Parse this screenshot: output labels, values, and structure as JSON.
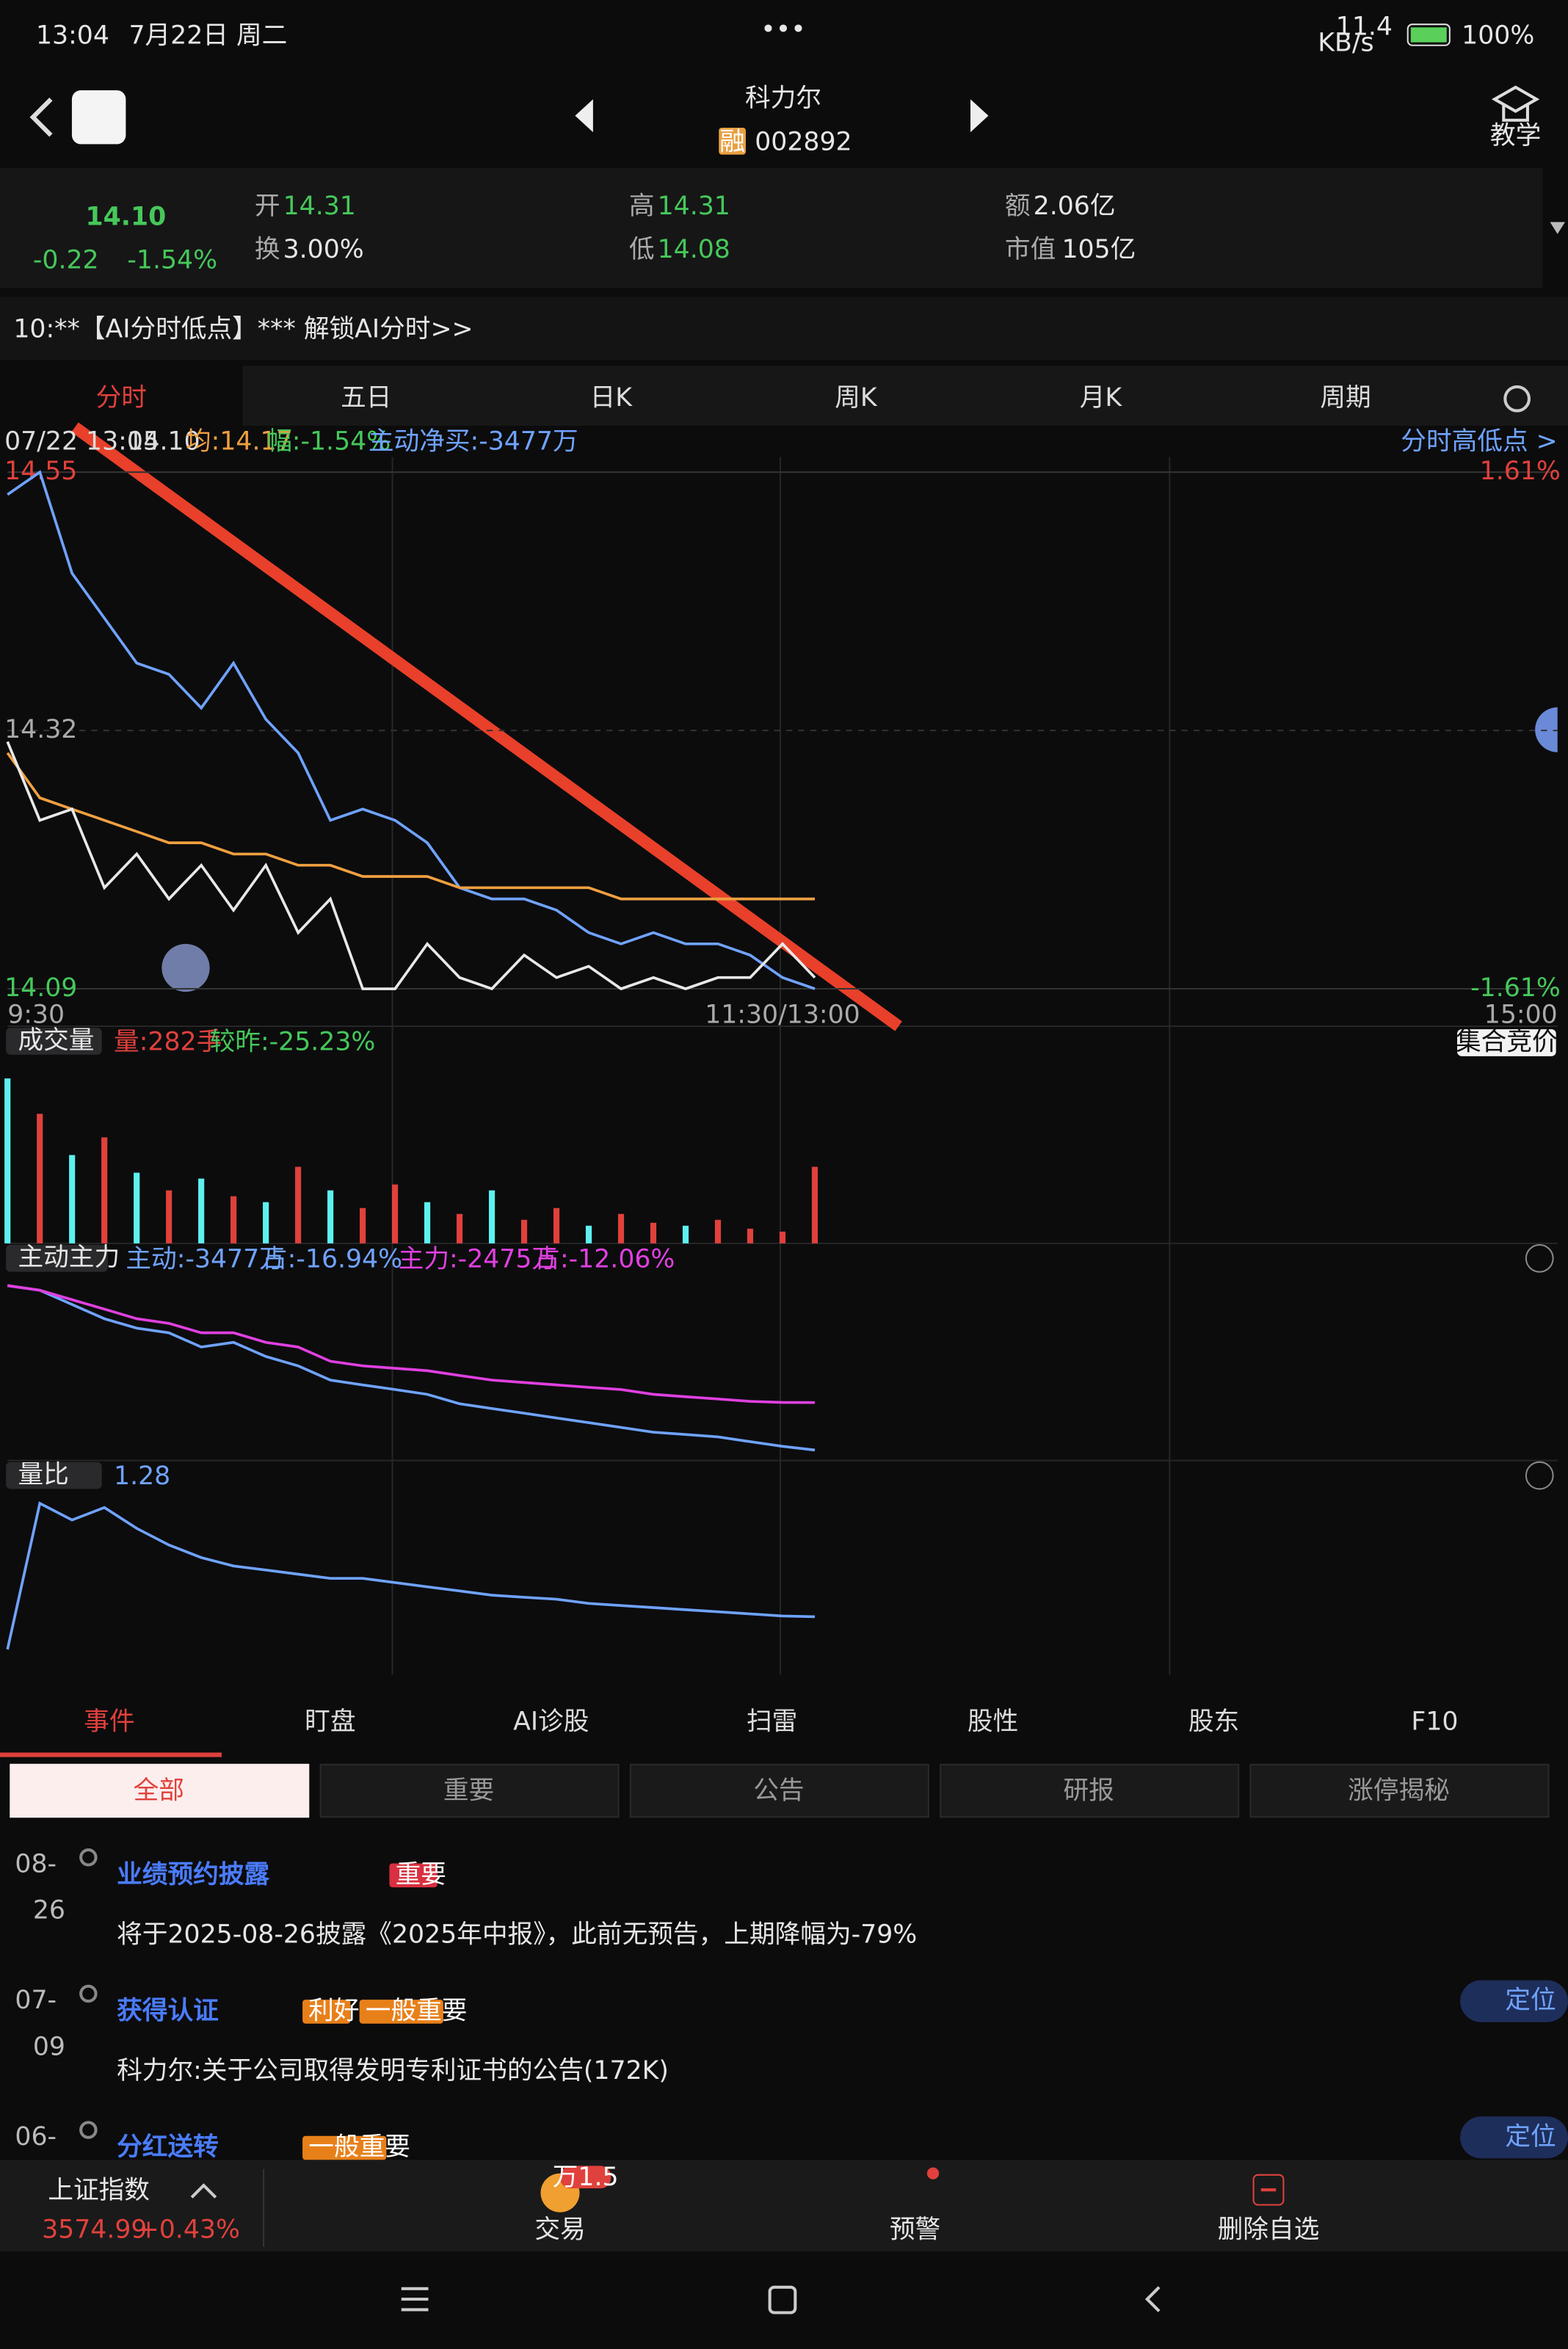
{
  "status": {
    "time": "13:04",
    "date": "7月22日 周二",
    "speed": "11.4",
    "speed_unit": "KB/s",
    "battery": "100%"
  },
  "header": {
    "name": "科力尔",
    "badge": "融",
    "code": "002892",
    "teach": "教学"
  },
  "quote": {
    "price": "14.10",
    "change": "-0.22",
    "pct": "-1.54%",
    "fields": [
      {
        "k": "开",
        "v": "14.31"
      },
      {
        "k": "换",
        "v": "3.00%"
      },
      {
        "k": "高",
        "v": "14.31"
      },
      {
        "k": "低",
        "v": "14.08"
      },
      {
        "k": "额",
        "v": "2.06亿"
      },
      {
        "k": "市值",
        "v": "105亿"
      }
    ]
  },
  "banner": "10:**【AI分时低点】*** 解锁AI分时>>",
  "tabs": [
    "分时",
    "五日",
    "日K",
    "周K",
    "月K",
    "周期"
  ],
  "info": {
    "time": "07/22 13:05",
    "price": "14.10",
    "avg": "均:14.17",
    "amp": "幅:-1.54%",
    "net": "主动净买:-3477万",
    "link": "分时高低点 >"
  },
  "charts": {
    "price": {
      "type": "line",
      "xlim": [
        0,
        240
      ],
      "xticks": [
        {
          "value": 0,
          "label": "9:30"
        },
        {
          "value": 120,
          "label": "11:30/13:00"
        },
        {
          "value": 240,
          "label": "15:00"
        }
      ],
      "ylim": [
        14.09,
        14.55
      ],
      "yticks": [
        14.55,
        14.32,
        14.09
      ],
      "grid": true,
      "y2lim": [
        -1.61,
        1.61
      ],
      "y2ticks": [
        {
          "value": 1.61,
          "label": "1.61%"
        },
        {
          "value": -1.61,
          "label": "-1.61%"
        }
      ],
      "x": [
        0,
        5,
        10,
        15,
        20,
        25,
        30,
        35,
        40,
        45,
        50,
        55,
        60,
        65,
        70,
        75,
        80,
        85,
        90,
        95,
        100,
        105,
        110,
        115,
        120,
        125
      ],
      "series": [
        {
          "color": "#6fa3ff",
          "values": [
            14.53,
            14.55,
            14.46,
            14.42,
            14.38,
            14.37,
            14.34,
            14.38,
            14.33,
            14.3,
            14.24,
            14.25,
            14.24,
            14.22,
            14.18,
            14.17,
            14.17,
            14.16,
            14.14,
            14.13,
            14.14,
            14.13,
            14.13,
            14.12,
            14.1,
            14.09
          ]
        },
        {
          "color": "#f0a040",
          "values": [
            14.3,
            14.26,
            14.25,
            14.24,
            14.23,
            14.22,
            14.22,
            14.21,
            14.21,
            14.2,
            14.2,
            14.19,
            14.19,
            14.19,
            14.18,
            14.18,
            14.18,
            14.18,
            14.18,
            14.17,
            14.17,
            14.17,
            14.17,
            14.17,
            14.17,
            14.17
          ]
        },
        {
          "color": "#e8e8e8",
          "values": [
            14.31,
            14.24,
            14.25,
            14.18,
            14.21,
            14.17,
            14.2,
            14.16,
            14.2,
            14.14,
            14.17,
            14.09,
            14.09,
            14.13,
            14.1,
            14.09,
            14.12,
            14.1,
            14.11,
            14.09,
            14.1,
            14.09,
            14.1,
            14.1,
            14.13,
            14.1
          ]
        }
      ]
    },
    "volume": {
      "type": "bar",
      "label": "成交量",
      "amount": "量:282手",
      "compare": "较昨:-25.23%",
      "auction": "集合竞价",
      "ylim": [
        0,
        3000
      ],
      "x": [
        0,
        5,
        10,
        15,
        20,
        25,
        30,
        35,
        40,
        45,
        50,
        55,
        60,
        65,
        70,
        75,
        80,
        85,
        90,
        95,
        100,
        105,
        110,
        115,
        120,
        125
      ],
      "values": [
        2800,
        2200,
        1500,
        1800,
        1200,
        900,
        1100,
        800,
        700,
        1300,
        900,
        600,
        1000,
        700,
        500,
        900,
        400,
        600,
        300,
        500,
        350,
        300,
        400,
        250,
        200,
        1300
      ],
      "colors": [
        "#5ef0f0",
        "#e0413c",
        "#5ef0f0",
        "#e0413c",
        "#5ef0f0",
        "#e0413c",
        "#5ef0f0",
        "#e0413c",
        "#5ef0f0",
        "#e0413c",
        "#5ef0f0",
        "#e0413c",
        "#e0413c",
        "#5ef0f0",
        "#e0413c",
        "#5ef0f0",
        "#e0413c",
        "#e0413c",
        "#5ef0f0",
        "#e0413c",
        "#e0413c",
        "#5ef0f0",
        "#e0413c",
        "#e0413c",
        "#e0413c",
        "#e0413c"
      ]
    },
    "flow": {
      "type": "line",
      "label": "主动主力",
      "legend": [
        {
          "text": "主动:-3477万",
          "color": "#6fa3ff"
        },
        {
          "text": "占:-16.94%",
          "color": "#6fa3ff"
        },
        {
          "text": "主力:-2475万",
          "color": "#e040e0"
        },
        {
          "text": "占:-12.06%",
          "color": "#e040e0"
        }
      ],
      "ylim": [
        -3700,
        100
      ],
      "x": [
        0,
        5,
        10,
        15,
        20,
        25,
        30,
        35,
        40,
        45,
        50,
        55,
        60,
        65,
        70,
        75,
        80,
        85,
        90,
        95,
        100,
        105,
        110,
        115,
        120,
        125
      ],
      "series": [
        {
          "color": "#6fa3ff",
          "values": [
            0,
            -100,
            -400,
            -700,
            -900,
            -1000,
            -1300,
            -1200,
            -1500,
            -1700,
            -2000,
            -2100,
            -2200,
            -2300,
            -2500,
            -2600,
            -2700,
            -2800,
            -2900,
            -3000,
            -3100,
            -3150,
            -3200,
            -3300,
            -3400,
            -3477
          ]
        },
        {
          "color": "#e040e0",
          "values": [
            0,
            -100,
            -300,
            -500,
            -700,
            -800,
            -1000,
            -1000,
            -1200,
            -1300,
            -1600,
            -1700,
            -1750,
            -1800,
            -1900,
            -2000,
            -2050,
            -2100,
            -2150,
            -2200,
            -2300,
            -2350,
            -2400,
            -2450,
            -2470,
            -2475
          ]
        }
      ]
    },
    "ratio": {
      "type": "line",
      "label": "量比",
      "current": "1.28",
      "ylim": [
        0,
        4.2
      ],
      "x": [
        0,
        5,
        10,
        15,
        20,
        25,
        30,
        35,
        40,
        45,
        50,
        55,
        60,
        65,
        70,
        75,
        80,
        85,
        90,
        95,
        100,
        105,
        110,
        115,
        120,
        125
      ],
      "series": [
        {
          "color": "#6fa3ff",
          "values": [
            0.5,
            4.0,
            3.6,
            3.9,
            3.4,
            3.0,
            2.7,
            2.5,
            2.4,
            2.3,
            2.2,
            2.2,
            2.1,
            2.0,
            1.9,
            1.8,
            1.75,
            1.7,
            1.6,
            1.55,
            1.5,
            1.45,
            1.4,
            1.35,
            1.3,
            1.28
          ]
        }
      ]
    }
  },
  "bottom_tabs": [
    "事件",
    "盯盘",
    "AI诊股",
    "扫雷",
    "股性",
    "股东",
    "F10"
  ],
  "filters": [
    "全部",
    "重要",
    "公告",
    "研报",
    "涨停揭秘"
  ],
  "events": [
    {
      "date": [
        "08-",
        "26"
      ],
      "title": "业绩预约披露",
      "tags": [
        "重要"
      ],
      "text": "将于2025-08-26披露《2025年中报》，此前无预告，上期降幅为-79%"
    },
    {
      "date": [
        "07-",
        "09"
      ],
      "title": "获得认证",
      "tags": [
        "利好",
        "一般重要"
      ],
      "text": "科力尔:关于公司取得发明专利证书的公告(172K)",
      "locate": "定位"
    },
    {
      "date": [
        "06-"
      ],
      "title": "分红送转",
      "tags": [
        "一般重要"
      ],
      "locate": "定位"
    }
  ],
  "footer": {
    "index": "上证指数",
    "index_value": "3574.99",
    "index_change": "+0.43%",
    "trade": "交易",
    "trade_badge": "万1.5",
    "alert": "预警",
    "remove": "删除自选"
  }
}
